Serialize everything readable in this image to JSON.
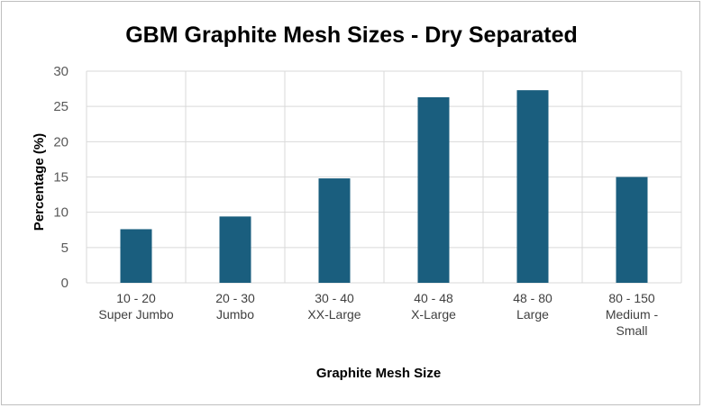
{
  "chart_data": {
    "type": "bar",
    "title": "GBM Graphite Mesh Sizes - Dry Separated",
    "xlabel": "Graphite Mesh Size",
    "ylabel": "Percentage (%)",
    "ylim": [
      0,
      30
    ],
    "yticks": [
      "0",
      "5",
      "10",
      "15",
      "20",
      "25",
      "30"
    ],
    "categories": [
      [
        "10 - 20",
        "Super Jumbo"
      ],
      [
        "20 - 30",
        "Jumbo"
      ],
      [
        "30 - 40",
        "XX-Large"
      ],
      [
        "40 - 48",
        "X-Large"
      ],
      [
        "48 - 80",
        "Large"
      ],
      [
        "80 - 150",
        "Medium -",
        "Small"
      ]
    ],
    "values": [
      7.6,
      9.4,
      14.8,
      26.3,
      27.3,
      15.0
    ],
    "grid": true,
    "bar_color": "#1a5e7e",
    "grid_color": "#d9d9d9"
  }
}
